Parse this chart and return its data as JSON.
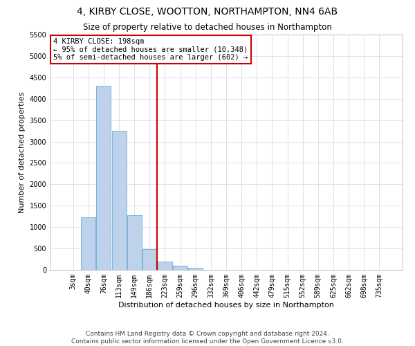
{
  "title": "4, KIRBY CLOSE, WOOTTON, NORTHAMPTON, NN4 6AB",
  "subtitle": "Size of property relative to detached houses in Northampton",
  "xlabel": "Distribution of detached houses by size in Northampton",
  "ylabel": "Number of detached properties",
  "categories": [
    "3sqm",
    "40sqm",
    "76sqm",
    "113sqm",
    "149sqm",
    "186sqm",
    "223sqm",
    "259sqm",
    "296sqm",
    "332sqm",
    "369sqm",
    "406sqm",
    "442sqm",
    "479sqm",
    "515sqm",
    "552sqm",
    "589sqm",
    "625sqm",
    "662sqm",
    "698sqm",
    "735sqm"
  ],
  "bar_values": [
    0,
    1230,
    4300,
    3250,
    1280,
    480,
    200,
    90,
    55,
    0,
    0,
    0,
    0,
    0,
    0,
    0,
    0,
    0,
    0,
    0,
    0
  ],
  "bar_color": "#bed3eb",
  "bar_edge_color": "#6aaad4",
  "property_line_x": 5.5,
  "property_line_color": "#cc0000",
  "annotation_text": "4 KIRBY CLOSE: 198sqm\n← 95% of detached houses are smaller (10,348)\n5% of semi-detached houses are larger (602) →",
  "annotation_box_color": "#cc0000",
  "annotation_fill": "#ffffff",
  "ylim": [
    0,
    5500
  ],
  "yticks": [
    0,
    500,
    1000,
    1500,
    2000,
    2500,
    3000,
    3500,
    4000,
    4500,
    5000,
    5500
  ],
  "footnote": "Contains HM Land Registry data © Crown copyright and database right 2024.\nContains public sector information licensed under the Open Government Licence v3.0.",
  "title_fontsize": 10,
  "subtitle_fontsize": 8.5,
  "xlabel_fontsize": 8,
  "ylabel_fontsize": 8,
  "tick_fontsize": 7,
  "footnote_fontsize": 6.5,
  "background_color": "#ffffff",
  "grid_color": "#c8d8e8"
}
